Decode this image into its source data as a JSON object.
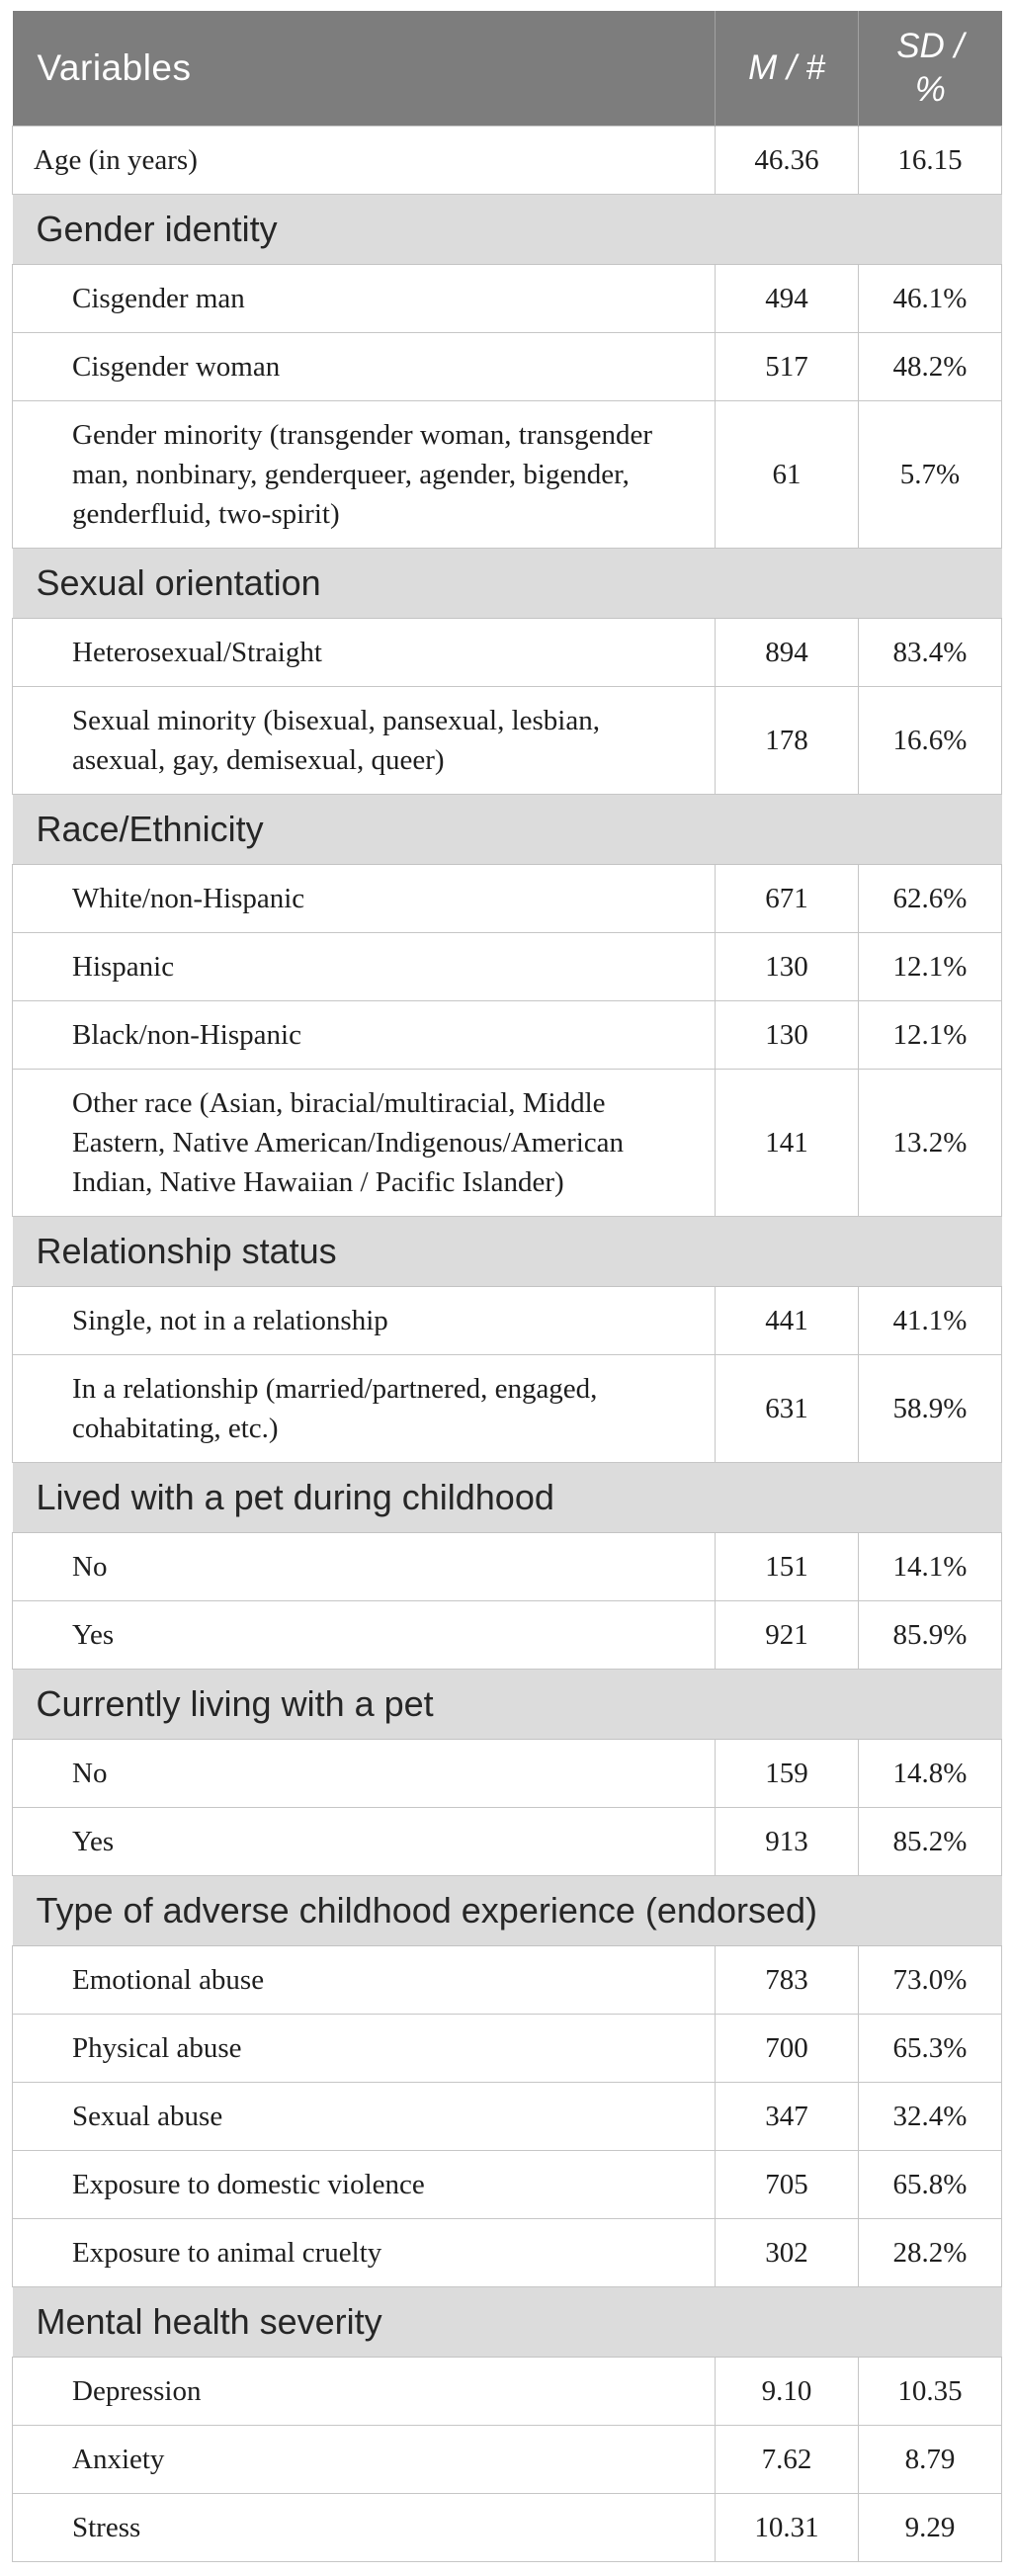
{
  "table": {
    "header": {
      "variables": "Variables",
      "m": "M / #",
      "sd": "SD / %"
    },
    "rows": [
      {
        "type": "data",
        "indent": false,
        "label": "Age (in years)",
        "m": "46.36",
        "sd": "16.15"
      },
      {
        "type": "section",
        "label": "Gender identity"
      },
      {
        "type": "data",
        "indent": true,
        "label": "Cisgender man",
        "m": "494",
        "sd": "46.1%"
      },
      {
        "type": "data",
        "indent": true,
        "label": "Cisgender woman",
        "m": "517",
        "sd": "48.2%"
      },
      {
        "type": "data",
        "indent": true,
        "label": "Gender minority (transgender woman, transgender man, nonbinary, genderqueer, agender, bigender, genderfluid, two-spirit)",
        "m": "61",
        "sd": "5.7%"
      },
      {
        "type": "section",
        "label": "Sexual orientation"
      },
      {
        "type": "data",
        "indent": true,
        "label": "Heterosexual/Straight",
        "m": "894",
        "sd": "83.4%"
      },
      {
        "type": "data",
        "indent": true,
        "label": "Sexual minority (bisexual, pansexual, lesbian, asexual, gay, demisexual, queer)",
        "m": "178",
        "sd": "16.6%"
      },
      {
        "type": "section",
        "label": "Race/Ethnicity"
      },
      {
        "type": "data",
        "indent": true,
        "label": "White/non-Hispanic",
        "m": "671",
        "sd": "62.6%"
      },
      {
        "type": "data",
        "indent": true,
        "label": "Hispanic",
        "m": "130",
        "sd": "12.1%"
      },
      {
        "type": "data",
        "indent": true,
        "label": "Black/non-Hispanic",
        "m": "130",
        "sd": "12.1%"
      },
      {
        "type": "data",
        "indent": true,
        "label": "Other race (Asian, biracial/multiracial, Middle Eastern, Native American/Indigenous/American Indian, Native Hawaiian / Pacific Islander)",
        "m": "141",
        "sd": "13.2%"
      },
      {
        "type": "section",
        "label": "Relationship status"
      },
      {
        "type": "data",
        "indent": true,
        "label": "Single, not in a relationship",
        "m": "441",
        "sd": "41.1%"
      },
      {
        "type": "data",
        "indent": true,
        "label": "In a relationship (married/partnered, engaged, cohabitating, etc.)",
        "m": "631",
        "sd": "58.9%"
      },
      {
        "type": "section",
        "label": "Lived with a pet during childhood"
      },
      {
        "type": "data",
        "indent": true,
        "label": "No",
        "m": "151",
        "sd": "14.1%"
      },
      {
        "type": "data",
        "indent": true,
        "label": "Yes",
        "m": "921",
        "sd": "85.9%"
      },
      {
        "type": "section",
        "label": "Currently living with a pet"
      },
      {
        "type": "data",
        "indent": true,
        "label": "No",
        "m": "159",
        "sd": "14.8%"
      },
      {
        "type": "data",
        "indent": true,
        "label": "Yes",
        "m": "913",
        "sd": "85.2%"
      },
      {
        "type": "section",
        "label": "Type of adverse childhood experience (endorsed)"
      },
      {
        "type": "data",
        "indent": true,
        "label": "Emotional abuse",
        "m": "783",
        "sd": "73.0%"
      },
      {
        "type": "data",
        "indent": true,
        "label": "Physical abuse",
        "m": "700",
        "sd": "65.3%"
      },
      {
        "type": "data",
        "indent": true,
        "label": "Sexual abuse",
        "m": "347",
        "sd": "32.4%"
      },
      {
        "type": "data",
        "indent": true,
        "label": "Exposure to domestic violence",
        "m": "705",
        "sd": "65.8%"
      },
      {
        "type": "data",
        "indent": true,
        "label": "Exposure to animal cruelty",
        "m": "302",
        "sd": "28.2%"
      },
      {
        "type": "section",
        "label": "Mental health severity"
      },
      {
        "type": "data",
        "indent": true,
        "label": "Depression",
        "m": "9.10",
        "sd": "10.35"
      },
      {
        "type": "data",
        "indent": true,
        "label": "Anxiety",
        "m": "7.62",
        "sd": "8.79"
      },
      {
        "type": "data",
        "indent": true,
        "label": "Stress",
        "m": "10.31",
        "sd": "9.29"
      }
    ]
  },
  "colors": {
    "header_bg": "#7d7d7d",
    "header_text": "#ffffff",
    "section_bg": "#dcdcdc",
    "border": "#c6c6c6",
    "body_text": "#1e1e1e"
  }
}
